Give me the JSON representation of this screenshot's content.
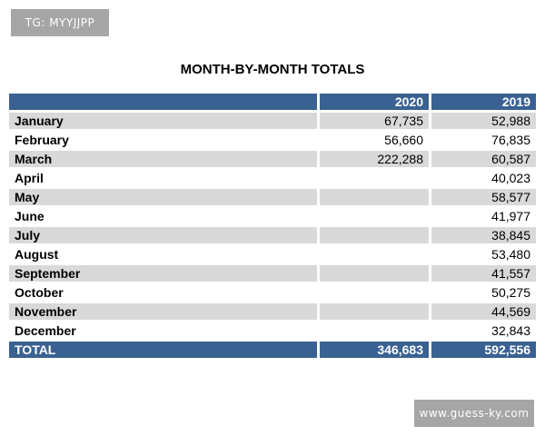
{
  "watermarks": {
    "top_left": "TG: MYYJJPP",
    "bottom_right": "www.guess-ky.com"
  },
  "chart_data": {
    "type": "table",
    "title": "MONTH-BY-MONTH TOTALS",
    "columns": [
      "",
      "2020",
      "2019"
    ],
    "rows": [
      {
        "month": "January",
        "y2020": "67,735",
        "y2019": "52,988"
      },
      {
        "month": "February",
        "y2020": "56,660",
        "y2019": "76,835"
      },
      {
        "month": "March",
        "y2020": "222,288",
        "y2019": "60,587"
      },
      {
        "month": "April",
        "y2020": "",
        "y2019": "40,023"
      },
      {
        "month": "May",
        "y2020": "",
        "y2019": "58,577"
      },
      {
        "month": "June",
        "y2020": "",
        "y2019": "41,977"
      },
      {
        "month": "July",
        "y2020": "",
        "y2019": "38,845"
      },
      {
        "month": "August",
        "y2020": "",
        "y2019": "53,480"
      },
      {
        "month": "September",
        "y2020": "",
        "y2019": "41,557"
      },
      {
        "month": "October",
        "y2020": "",
        "y2019": "50,275"
      },
      {
        "month": "November",
        "y2020": "",
        "y2019": "44,569"
      },
      {
        "month": "December",
        "y2020": "",
        "y2019": "32,843"
      }
    ],
    "total": {
      "label": "TOTAL",
      "y2020": "346,683",
      "y2019": "592,556"
    },
    "colors": {
      "header": "#3a6191",
      "shade": "#d9d9d9"
    }
  }
}
